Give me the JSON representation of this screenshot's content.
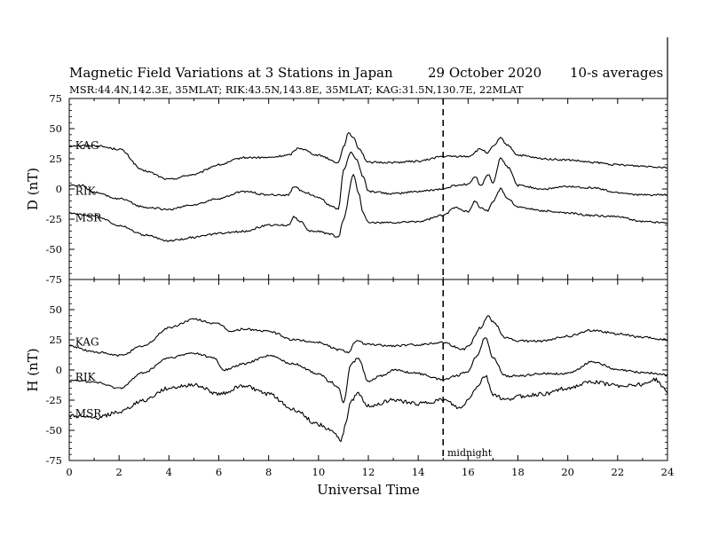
{
  "title": "Magnetic Field Variations at 3 Stations in Japan",
  "date": "29 October 2020",
  "averaging": "10-s averages",
  "subtitle": "MSR:44.4N,142.3E, 35MLAT;  RIK:43.5N,143.8E, 35MLAT;  KAG:31.5N,130.7E, 22MLAT",
  "annotation": "midnight",
  "colors": {
    "ink": "#000000",
    "background": "#ffffff"
  },
  "chart_data": [
    {
      "type": "line",
      "ylabel": "D (nT)",
      "xlabel": "",
      "xlim": [
        0,
        24
      ],
      "ylim": [
        -75,
        75
      ],
      "xticks": [
        0,
        2,
        4,
        6,
        8,
        10,
        12,
        14,
        16,
        18,
        20,
        22,
        24
      ],
      "yticks": [
        -75,
        -50,
        -25,
        0,
        25,
        50,
        75
      ],
      "grid": false,
      "vertical_marker_x": 15,
      "series": [
        {
          "name": "KAG",
          "label_at": [
            0.1,
            36
          ],
          "x": [
            0,
            1,
            2,
            3,
            4,
            5,
            6,
            7,
            8,
            8.8,
            9.2,
            10,
            10.8,
            11,
            11.2,
            11.4,
            11.6,
            12,
            13,
            14,
            15,
            16,
            16.5,
            16.8,
            17,
            17.3,
            17.6,
            18,
            19,
            20,
            21,
            22,
            23,
            24
          ],
          "y": [
            36,
            36,
            33,
            15,
            8,
            12,
            20,
            26,
            26,
            28,
            34,
            28,
            22,
            35,
            46,
            43,
            34,
            22,
            22,
            23,
            27,
            27,
            33,
            30,
            35,
            42,
            36,
            28,
            25,
            24,
            22,
            20,
            19,
            18
          ]
        },
        {
          "name": "RIK",
          "label_at": [
            0.1,
            -2
          ],
          "x": [
            0,
            0.5,
            1,
            2,
            3,
            4,
            5,
            6,
            7,
            8,
            8.8,
            9,
            9.3,
            9.5,
            10,
            10.5,
            10.8,
            11,
            11.3,
            11.5,
            11.8,
            12,
            13,
            14,
            15,
            15.5,
            16,
            16.3,
            16.5,
            16.8,
            17,
            17.3,
            17.6,
            18,
            19,
            20,
            21,
            22,
            23,
            24
          ],
          "y": [
            3,
            3,
            -3,
            -8,
            -15,
            -17,
            -13,
            -8,
            -2,
            -5,
            -5,
            2,
            -1,
            -3,
            -7,
            -14,
            -17,
            15,
            31,
            25,
            10,
            -2,
            -4,
            -2,
            0,
            3,
            4,
            10,
            3,
            12,
            5,
            25,
            18,
            3,
            0,
            2,
            1,
            -3,
            -5,
            -5
          ]
        },
        {
          "name": "MSR",
          "label_at": [
            0.1,
            -24
          ],
          "x": [
            0,
            1,
            2,
            3,
            4,
            5,
            6,
            7,
            8,
            8.8,
            9,
            9.3,
            9.6,
            10,
            10.4,
            10.8,
            11,
            11.4,
            11.6,
            11.8,
            12,
            13,
            14,
            15,
            15.5,
            16,
            16.3,
            16.5,
            16.8,
            17,
            17.3,
            17.6,
            18,
            19,
            20,
            21,
            22,
            23,
            24
          ],
          "y": [
            -20,
            -22,
            -30,
            -38,
            -43,
            -40,
            -37,
            -35,
            -30,
            -30,
            -23,
            -27,
            -35,
            -35,
            -37,
            -40,
            -25,
            12,
            -3,
            -20,
            -28,
            -28,
            -27,
            -22,
            -15,
            -19,
            -10,
            -16,
            -18,
            -10,
            0,
            -8,
            -15,
            -18,
            -20,
            -22,
            -23,
            -27,
            -28
          ]
        }
      ]
    },
    {
      "type": "line",
      "ylabel": "H (nT)",
      "xlabel": "Universal Time",
      "xlim": [
        0,
        24
      ],
      "ylim": [
        -75,
        75
      ],
      "xticks": [
        0,
        2,
        4,
        6,
        8,
        10,
        12,
        14,
        16,
        18,
        20,
        22,
        24
      ],
      "yticks": [
        -75,
        -50,
        -25,
        0,
        25,
        50,
        75
      ],
      "grid": false,
      "vertical_marker_x": 15,
      "series": [
        {
          "name": "KAG",
          "label_at": [
            0.1,
            23
          ],
          "x": [
            0,
            1,
            2,
            3,
            4,
            5,
            6,
            6.5,
            7,
            8,
            9,
            10,
            10.8,
            11.2,
            11.5,
            12,
            13,
            14,
            15,
            15.8,
            16,
            16.5,
            16.8,
            17,
            17.5,
            18,
            19,
            20,
            21,
            22,
            23,
            24
          ],
          "y": [
            20,
            15,
            12,
            20,
            35,
            42,
            38,
            32,
            34,
            32,
            25,
            23,
            17,
            15,
            24,
            21,
            20,
            21,
            23,
            17,
            20,
            35,
            45,
            40,
            27,
            24,
            24,
            28,
            33,
            30,
            27,
            25
          ]
        },
        {
          "name": "RIK",
          "label_at": [
            0.1,
            -6
          ],
          "x": [
            0,
            1,
            2,
            3,
            4,
            5,
            5.8,
            6.2,
            7,
            8,
            9,
            10,
            10.5,
            10.8,
            11,
            11.3,
            11.6,
            12,
            12.5,
            13,
            14,
            15,
            15.5,
            16,
            16.3,
            16.7,
            17,
            17.5,
            18,
            19,
            20,
            21,
            22,
            23,
            24
          ],
          "y": [
            -8,
            -10,
            -15,
            -2,
            10,
            14,
            10,
            0,
            5,
            12,
            5,
            -3,
            -10,
            -15,
            -28,
            5,
            10,
            -10,
            -5,
            0,
            -3,
            -8,
            -5,
            -1,
            10,
            27,
            10,
            -5,
            -5,
            -3,
            -3,
            7,
            0,
            -2,
            -4
          ]
        },
        {
          "name": "MSR",
          "label_at": [
            0.1,
            -36
          ],
          "x": [
            0,
            1,
            2,
            3,
            4,
            5,
            6,
            7,
            8,
            9,
            10,
            10.5,
            10.9,
            11.1,
            11.3,
            11.6,
            12,
            13,
            14,
            15,
            15.7,
            16,
            16.3,
            16.7,
            17,
            17.5,
            18,
            19,
            20,
            21,
            22,
            23,
            23.5,
            24
          ],
          "y": [
            -38,
            -40,
            -35,
            -25,
            -15,
            -12,
            -20,
            -13,
            -20,
            -33,
            -45,
            -50,
            -58,
            -45,
            -25,
            -20,
            -30,
            -25,
            -28,
            -25,
            -32,
            -25,
            -15,
            -5,
            -20,
            -25,
            -22,
            -20,
            -15,
            -10,
            -13,
            -12,
            -8,
            -18
          ]
        }
      ]
    }
  ]
}
